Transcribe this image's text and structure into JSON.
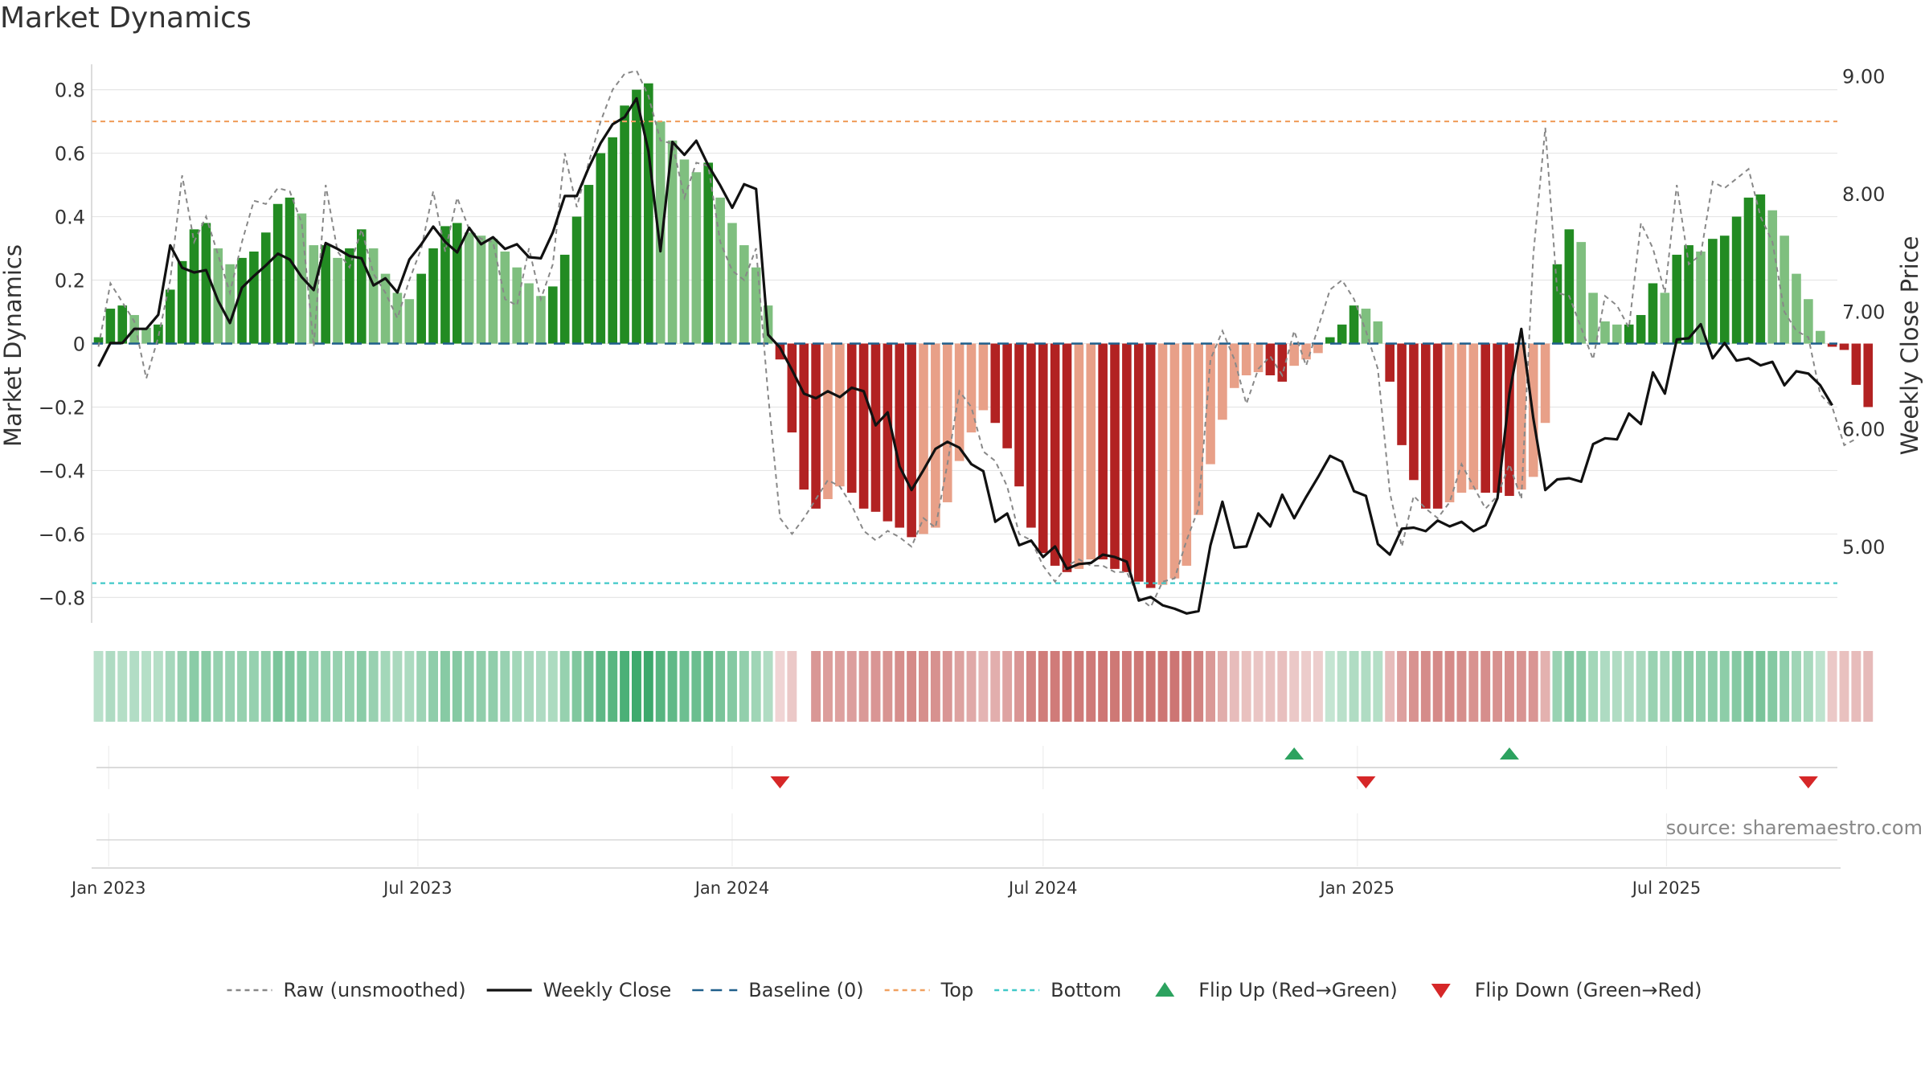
{
  "chart_data": {
    "type": "bar",
    "title": "Market Dynamics",
    "ylabel_left": "Market Dynamics",
    "ylabel_right": "Weekly Close Price",
    "source": "source: sharemaestro.com",
    "x_start": "2022-12-26",
    "x_end": "2025-10-06",
    "xlim": [
      "2022-12-22",
      "2025-10-09"
    ],
    "ylim_left": [
      -0.88,
      0.88
    ],
    "ylim_right": [
      4.35,
      9.1
    ],
    "y_ticks_left": [
      0.8,
      0.6,
      0.4,
      0.2,
      0,
      -0.2,
      -0.4,
      -0.6,
      -0.8
    ],
    "y_tick_labels_left": [
      "0.8",
      "0.6",
      "0.4",
      "0.2",
      "0",
      "−0.2",
      "−0.4",
      "−0.6",
      "−0.8"
    ],
    "y_ticks_right": [
      9.0,
      8.0,
      7.0,
      6.0,
      5.0
    ],
    "y_tick_labels_right": [
      "9.00",
      "8.00",
      "7.00",
      "6.00",
      "5.00"
    ],
    "x_ticks": [
      {
        "date": "2023-01-01",
        "label": "Jan 2023"
      },
      {
        "date": "2023-07-01",
        "label": "Jul 2023"
      },
      {
        "date": "2024-01-01",
        "label": "Jan 2024"
      },
      {
        "date": "2024-07-01",
        "label": "Jul 2024"
      },
      {
        "date": "2025-01-01",
        "label": "Jan 2025"
      },
      {
        "date": "2025-07-01",
        "label": "Jul 2025"
      }
    ],
    "top_level": 0.7,
    "bottom_level": -0.755,
    "baseline": 0,
    "series": [
      {
        "name": "Market Dynamics (smoothed)",
        "values": [
          0.02,
          0.11,
          0.12,
          0.09,
          0.05,
          0.06,
          0.17,
          0.26,
          0.36,
          0.38,
          0.3,
          0.25,
          0.27,
          0.29,
          0.35,
          0.44,
          0.46,
          0.41,
          0.31,
          0.31,
          0.27,
          0.3,
          0.36,
          0.3,
          0.22,
          0.16,
          0.14,
          0.22,
          0.3,
          0.37,
          0.38,
          0.35,
          0.34,
          0.33,
          0.29,
          0.24,
          0.19,
          0.15,
          0.18,
          0.28,
          0.4,
          0.5,
          0.6,
          0.65,
          0.75,
          0.8,
          0.82,
          0.7,
          0.64,
          0.58,
          0.54,
          0.57,
          0.46,
          0.38,
          0.31,
          0.24,
          0.12,
          -0.05,
          -0.28,
          -0.46,
          -0.52,
          -0.49,
          -0.45,
          -0.47,
          -0.52,
          -0.53,
          -0.56,
          -0.58,
          -0.61,
          -0.6,
          -0.58,
          -0.5,
          -0.37,
          -0.28,
          -0.21,
          -0.25,
          -0.33,
          -0.45,
          -0.58,
          -0.66,
          -0.7,
          -0.72,
          -0.71,
          -0.68,
          -0.68,
          -0.71,
          -0.72,
          -0.75,
          -0.77,
          -0.76,
          -0.74,
          -0.7,
          -0.54,
          -0.38,
          -0.24,
          -0.14,
          -0.1,
          -0.09,
          -0.1,
          -0.12,
          -0.07,
          -0.05,
          -0.03,
          0.02,
          0.06,
          0.12,
          0.11,
          0.07,
          -0.12,
          -0.32,
          -0.43,
          -0.52,
          -0.52,
          -0.5,
          -0.47,
          -0.46,
          -0.47,
          -0.47,
          -0.48,
          -0.46,
          -0.42,
          -0.25,
          0.25,
          0.36,
          0.32,
          0.16,
          0.07,
          0.06,
          0.06,
          0.09,
          0.19,
          0.16,
          0.28,
          0.31,
          0.29,
          0.33,
          0.34,
          0.4,
          0.46,
          0.47,
          0.42,
          0.34,
          0.22,
          0.14,
          0.04,
          -0.01,
          -0.02,
          -0.13,
          -0.2
        ]
      },
      {
        "name": "Raw (unsmoothed)",
        "values": [
          -0.01,
          0.19,
          0.13,
          0.07,
          -0.11,
          0.02,
          0.2,
          0.53,
          0.32,
          0.4,
          0.28,
          0.16,
          0.32,
          0.45,
          0.44,
          0.49,
          0.48,
          0.38,
          -0.01,
          0.5,
          0.29,
          0.24,
          0.36,
          0.22,
          0.16,
          0.08,
          0.2,
          0.3,
          0.48,
          0.29,
          0.46,
          0.36,
          0.33,
          0.32,
          0.14,
          0.12,
          0.3,
          0.14,
          0.25,
          0.6,
          0.43,
          0.57,
          0.7,
          0.8,
          0.85,
          0.86,
          0.78,
          0.64,
          0.63,
          0.46,
          0.57,
          0.56,
          0.32,
          0.23,
          0.2,
          0.3,
          -0.16,
          -0.55,
          -0.6,
          -0.55,
          -0.49,
          -0.43,
          -0.45,
          -0.51,
          -0.59,
          -0.62,
          -0.59,
          -0.61,
          -0.64,
          -0.55,
          -0.58,
          -0.38,
          -0.15,
          -0.2,
          -0.34,
          -0.37,
          -0.45,
          -0.6,
          -0.62,
          -0.7,
          -0.75,
          -0.7,
          -0.68,
          -0.7,
          -0.7,
          -0.72,
          -0.72,
          -0.8,
          -0.83,
          -0.75,
          -0.74,
          -0.62,
          -0.52,
          -0.05,
          0.04,
          -0.05,
          -0.19,
          -0.08,
          -0.04,
          -0.1,
          0.04,
          -0.07,
          0.05,
          0.17,
          0.2,
          0.14,
          0.04,
          -0.08,
          -0.47,
          -0.64,
          -0.48,
          -0.52,
          -0.55,
          -0.5,
          -0.38,
          -0.45,
          -0.52,
          -0.48,
          -0.38,
          -0.49,
          0.28,
          0.68,
          0.16,
          0.15,
          0.05,
          -0.05,
          0.15,
          0.12,
          0.05,
          0.38,
          0.3,
          0.16,
          0.5,
          0.25,
          0.28,
          0.51,
          0.49,
          0.52,
          0.55,
          0.4,
          0.32,
          0.1,
          0.04,
          0.02,
          -0.16,
          -0.2,
          -0.32,
          -0.3
        ]
      },
      {
        "name": "Weekly Close",
        "values": [
          6.53,
          6.73,
          6.73,
          6.85,
          6.85,
          6.97,
          7.56,
          7.37,
          7.33,
          7.35,
          7.09,
          6.9,
          7.2,
          7.3,
          7.39,
          7.49,
          7.44,
          7.29,
          7.18,
          7.58,
          7.53,
          7.47,
          7.45,
          7.22,
          7.28,
          7.16,
          7.44,
          7.57,
          7.72,
          7.59,
          7.5,
          7.71,
          7.57,
          7.63,
          7.53,
          7.57,
          7.46,
          7.45,
          7.67,
          7.98,
          7.98,
          8.22,
          8.43,
          8.59,
          8.65,
          8.81,
          8.36,
          7.51,
          8.44,
          8.33,
          8.45,
          8.24,
          8.07,
          7.88,
          8.08,
          8.04,
          6.8,
          6.69,
          6.5,
          6.3,
          6.26,
          6.32,
          6.27,
          6.35,
          6.32,
          6.03,
          6.14,
          5.68,
          5.48,
          5.65,
          5.83,
          5.89,
          5.84,
          5.7,
          5.64,
          5.21,
          5.28,
          5.01,
          5.05,
          4.91,
          5.0,
          4.81,
          4.85,
          4.86,
          4.93,
          4.91,
          4.87,
          4.54,
          4.57,
          4.5,
          4.47,
          4.43,
          4.45,
          5.01,
          5.38,
          4.99,
          5.0,
          5.28,
          5.17,
          5.44,
          5.24,
          5.42,
          5.59,
          5.77,
          5.72,
          5.47,
          5.43,
          5.02,
          4.93,
          5.15,
          5.16,
          5.13,
          5.22,
          5.17,
          5.21,
          5.13,
          5.18,
          5.41,
          6.3,
          6.85,
          6.09,
          5.48,
          5.57,
          5.58,
          5.55,
          5.87,
          5.92,
          5.91,
          6.13,
          6.04,
          6.48,
          6.3,
          6.76,
          6.77,
          6.89,
          6.6,
          6.73,
          6.58,
          6.6,
          6.54,
          6.57,
          6.37,
          6.49,
          6.47,
          6.37,
          6.2
        ]
      }
    ],
    "regime_strip_alphas": [
      0.24,
      0.3,
      0.27,
      0.28,
      0.26,
      0.26,
      0.34,
      0.42,
      0.49,
      0.5,
      0.43,
      0.41,
      0.43,
      0.43,
      0.46,
      0.57,
      0.56,
      0.53,
      0.44,
      0.45,
      0.43,
      0.43,
      0.49,
      0.42,
      0.36,
      0.32,
      0.31,
      0.39,
      0.47,
      0.51,
      0.52,
      0.47,
      0.46,
      0.46,
      0.42,
      0.36,
      0.32,
      0.3,
      0.31,
      0.43,
      0.55,
      0.62,
      0.73,
      0.76,
      0.83,
      0.9,
      0.91,
      0.77,
      0.72,
      0.65,
      0.66,
      0.69,
      0.58,
      0.52,
      0.45,
      0.38,
      0.29,
      0.14,
      0.22,
      0.0,
      0.54,
      0.5,
      0.48,
      0.49,
      0.53,
      0.55,
      0.56,
      0.6,
      0.62,
      0.6,
      0.58,
      0.55,
      0.47,
      0.42,
      0.35,
      0.39,
      0.46,
      0.55,
      0.66,
      0.71,
      0.72,
      0.72,
      0.73,
      0.73,
      0.75,
      0.74,
      0.73,
      0.74,
      0.76,
      0.76,
      0.76,
      0.76,
      0.67,
      0.53,
      0.4,
      0.3,
      0.27,
      0.24,
      0.26,
      0.28,
      0.22,
      0.2,
      0.18,
      0.18,
      0.24,
      0.29,
      0.29,
      0.26,
      0.3,
      0.48,
      0.57,
      0.61,
      0.62,
      0.62,
      0.6,
      0.57,
      0.6,
      0.58,
      0.58,
      0.56,
      0.55,
      0.37,
      0.41,
      0.52,
      0.49,
      0.36,
      0.3,
      0.29,
      0.29,
      0.32,
      0.41,
      0.37,
      0.46,
      0.48,
      0.46,
      0.47,
      0.48,
      0.52,
      0.57,
      0.58,
      0.53,
      0.47,
      0.38,
      0.33,
      0.21,
      0.22,
      0.27,
      0.3,
      0.31
    ],
    "flips_up": [
      "2024-11-25",
      "2025-03-31"
    ],
    "flips_down": [
      "2024-01-29",
      "2025-01-06",
      "2025-09-22"
    ],
    "legend": {
      "placement": "bottom-center",
      "items": [
        {
          "label": "Raw (unsmoothed)",
          "kind": "dashed-line",
          "color": "#888888"
        },
        {
          "label": "Weekly Close",
          "kind": "line",
          "color": "#111111"
        },
        {
          "label": "Baseline (0)",
          "kind": "dashed-line",
          "color": "#1f5f8b"
        },
        {
          "label": "Top",
          "kind": "dashed-line",
          "color": "#f0a060"
        },
        {
          "label": "Bottom",
          "kind": "dashed-line",
          "color": "#40c8c8"
        },
        {
          "label": "Flip Up (Red→Green)",
          "kind": "triangle-up",
          "color": "#2ca25f"
        },
        {
          "label": "Flip Down (Green→Red)",
          "kind": "triangle-down",
          "color": "#d62728"
        }
      ]
    },
    "colors": {
      "green_dark": "#228b22",
      "green_light": "#7fbf7f",
      "red_dark": "#b22222",
      "red_light": "#e8a088",
      "strip_green": "#2ca25f",
      "strip_red": "#c0504d",
      "raw": "#888888",
      "close": "#111111",
      "baseline": "#1f5f8b",
      "top": "#f0a060",
      "bottom": "#40c8c8",
      "grid": "#e6e6e6"
    },
    "grid": true
  }
}
